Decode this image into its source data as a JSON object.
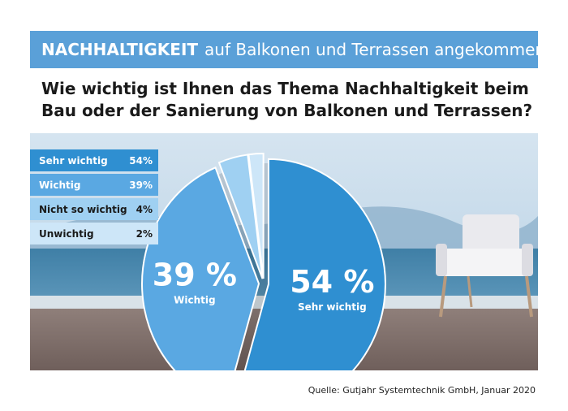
{
  "header": {
    "title_bold": "NACHHALTIGKEIT",
    "title_rest": "auf Balkonen und Terrassen angekommen"
  },
  "question": {
    "line1": "Wie wichtig ist Ihnen das Thema Nachhaltigkeit beim",
    "line2": "Bau oder der Sanierung von Balkonen und Terrassen?"
  },
  "chart_data": {
    "type": "pie",
    "slices": [
      {
        "label": "Sehr wichtig",
        "value": 54,
        "display": "54%",
        "big": "54 %",
        "color": "#2f8fd1",
        "text_color": "#ffffff"
      },
      {
        "label": "Wichtig",
        "value": 39,
        "display": "39%",
        "big": "39 %",
        "color": "#5aa8e2",
        "text_color": "#ffffff"
      },
      {
        "label": "Nicht so wichtig",
        "value": 4,
        "display": "4%",
        "color": "#9fd0f2",
        "text_color": "#1a1a1a"
      },
      {
        "label": "Unwichtig",
        "value": 2,
        "display": "2%",
        "color": "#cde6f8",
        "text_color": "#1a1a1a"
      }
    ]
  },
  "source": "Quelle: Gutjahr Systemtechnik GmbH, Januar 2020"
}
